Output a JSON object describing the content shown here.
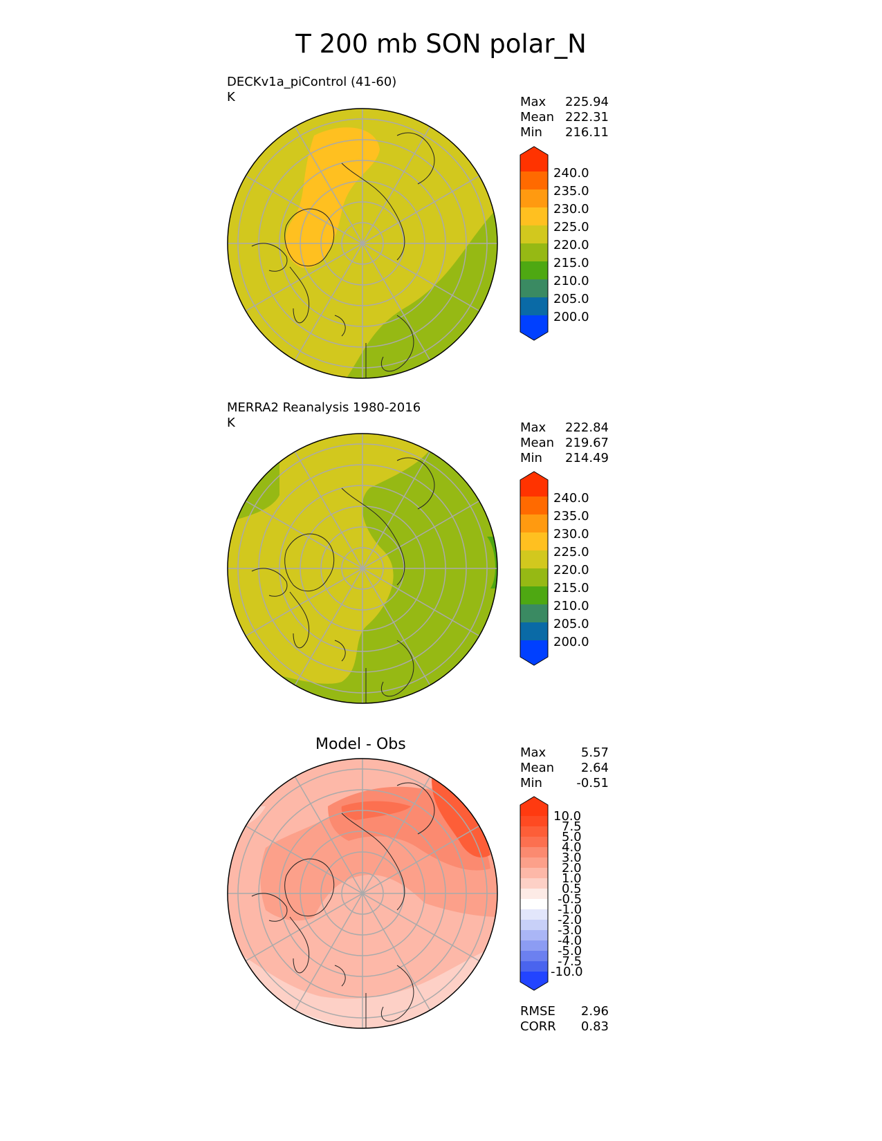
{
  "title": "T 200 mb SON polar_N",
  "panels": [
    {
      "label": "DECKv1a_piControl (41-60)",
      "units": "K",
      "stats": [
        {
          "name": "Max",
          "value": "225.94"
        },
        {
          "name": "Mean",
          "value": "222.31"
        },
        {
          "name": "Min",
          "value": "216.11"
        }
      ]
    },
    {
      "label": "MERRA2 Reanalysis 1980-2016",
      "units": "K",
      "stats": [
        {
          "name": "Max",
          "value": "222.84"
        },
        {
          "name": "Mean",
          "value": "219.67"
        },
        {
          "name": "Min",
          "value": "214.49"
        }
      ]
    },
    {
      "title": "Model - Obs",
      "stats": [
        {
          "name": "Max",
          "value": "5.57"
        },
        {
          "name": "Mean",
          "value": "2.64"
        },
        {
          "name": "Min",
          "value": "-0.51"
        }
      ],
      "metrics": [
        {
          "name": "RMSE",
          "value": "2.96"
        },
        {
          "name": "CORR",
          "value": "0.83"
        }
      ]
    }
  ],
  "colorbar_abs": {
    "labels": [
      "240.0",
      "235.0",
      "230.0",
      "225.0",
      "220.0",
      "215.0",
      "210.0",
      "205.0",
      "200.0"
    ],
    "colors": [
      "#ff3300",
      "#ff6a00",
      "#ff9a10",
      "#ffc020",
      "#d2c81e",
      "#96b914",
      "#4ea812",
      "#3a8a62",
      "#0a6aa6",
      "#0040ff"
    ]
  },
  "colorbar_diff": {
    "labels": [
      "10.0",
      "7.5",
      "5.0",
      "4.0",
      "3.0",
      "2.0",
      "1.0",
      "0.5",
      "-0.5",
      "-1.0",
      "-2.0",
      "-3.0",
      "-4.0",
      "-5.0",
      "-7.5",
      "-10.0"
    ],
    "colors": [
      "#ff3a10",
      "#fe4a22",
      "#fd5e38",
      "#fc7050",
      "#fb8a70",
      "#fca08a",
      "#fdb8a8",
      "#fdd0c6",
      "#fdebe6",
      "#ffffff",
      "#e2e6fb",
      "#c8d0f8",
      "#aab6f6",
      "#8c9cf3",
      "#6c80f0",
      "#4a64ee",
      "#2244ff"
    ]
  }
}
